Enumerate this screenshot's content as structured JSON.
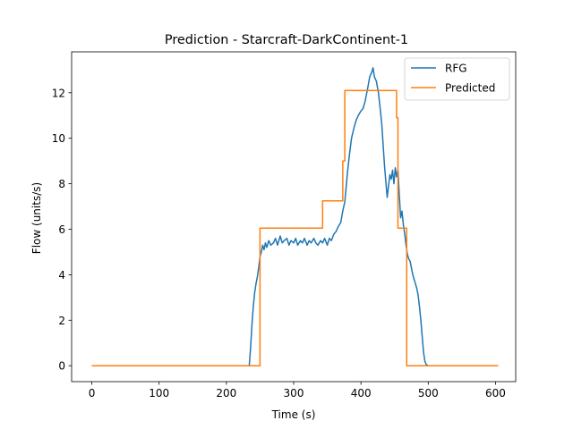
{
  "chart_data": {
    "type": "line",
    "title": "Prediction - Starcraft-DarkContinent-1",
    "xlabel": "Time (s)",
    "ylabel": "Flow (units/s)",
    "xlim": [
      -30,
      630
    ],
    "ylim": [
      -0.7,
      13.8
    ],
    "xticks": [
      0,
      100,
      200,
      300,
      400,
      500,
      600
    ],
    "yticks": [
      0,
      2,
      4,
      6,
      8,
      10,
      12
    ],
    "grid": false,
    "legend_position": "top-right",
    "colors": {
      "RFG": "#1f77b4",
      "Predicted": "#ff7f0e"
    },
    "series": [
      {
        "name": "RFG",
        "x": [
          0,
          100,
          200,
          234,
          236,
          238,
          240,
          242,
          244,
          246,
          248,
          250,
          252,
          254,
          256,
          258,
          260,
          263,
          266,
          270,
          273,
          276,
          280,
          283,
          286,
          290,
          293,
          296,
          300,
          303,
          306,
          310,
          313,
          316,
          320,
          323,
          326,
          330,
          333,
          336,
          340,
          343,
          346,
          350,
          353,
          356,
          360,
          363,
          366,
          370,
          373,
          376,
          380,
          383,
          386,
          390,
          393,
          396,
          400,
          403,
          406,
          410,
          413,
          416,
          418,
          420,
          423,
          426,
          429,
          431,
          433,
          435,
          437,
          439,
          441,
          443,
          445,
          447,
          449,
          451,
          453,
          455,
          457,
          459,
          461,
          463,
          465,
          467,
          469,
          471,
          473,
          475,
          477,
          479,
          481,
          483,
          485,
          487,
          489,
          491,
          493,
          495,
          497,
          500,
          550,
          604
        ],
        "y": [
          0,
          0,
          0,
          0,
          0.8,
          1.8,
          2.6,
          3.2,
          3.6,
          3.9,
          4.3,
          4.8,
          5.0,
          5.3,
          5.1,
          5.4,
          5.2,
          5.5,
          5.3,
          5.4,
          5.6,
          5.3,
          5.7,
          5.4,
          5.5,
          5.6,
          5.3,
          5.5,
          5.4,
          5.6,
          5.3,
          5.5,
          5.4,
          5.6,
          5.3,
          5.5,
          5.4,
          5.6,
          5.4,
          5.3,
          5.5,
          5.4,
          5.6,
          5.3,
          5.6,
          5.5,
          5.8,
          5.9,
          6.1,
          6.3,
          6.8,
          7.2,
          8.5,
          9.3,
          10.0,
          10.5,
          10.8,
          11.0,
          11.2,
          11.3,
          11.6,
          12.2,
          12.7,
          12.9,
          13.1,
          12.7,
          12.5,
          12.0,
          11.2,
          10.6,
          9.7,
          8.8,
          8.1,
          7.4,
          7.9,
          8.4,
          8.2,
          8.6,
          8.0,
          8.7,
          8.3,
          8.6,
          7.5,
          6.5,
          6.8,
          6.2,
          5.8,
          5.3,
          4.9,
          4.7,
          4.6,
          4.3,
          4.0,
          3.8,
          3.6,
          3.4,
          3.1,
          2.6,
          2.0,
          1.3,
          0.6,
          0.2,
          0.05,
          0,
          0,
          0
        ]
      },
      {
        "name": "Predicted",
        "x": [
          0,
          250,
          250,
          343,
          343,
          373,
          373,
          376,
          376,
          450,
          453,
          453,
          455,
          455,
          468,
          468,
          604
        ],
        "y": [
          0,
          0,
          6.05,
          6.05,
          7.25,
          7.25,
          9.0,
          9.0,
          12.1,
          12.1,
          12.1,
          10.9,
          10.9,
          6.05,
          6.05,
          0,
          0
        ]
      }
    ]
  }
}
